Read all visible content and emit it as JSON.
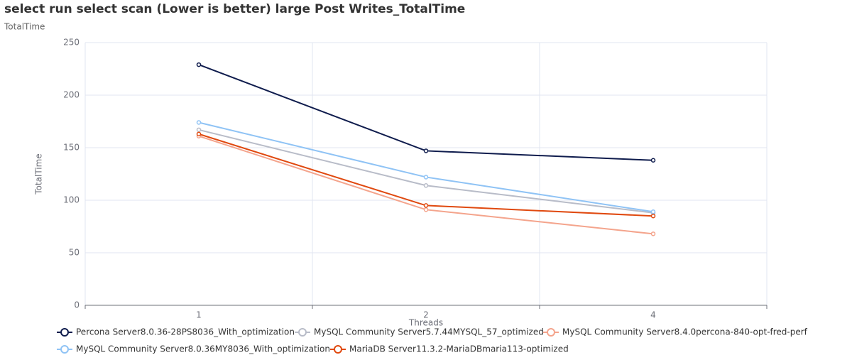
{
  "chart_data": {
    "type": "line",
    "title": "select run select scan (Lower is better)  large Post Writes_TotalTime",
    "subtitle": "TotalTime",
    "x_label": "Threads",
    "y_label": "TotalTime",
    "categories": [
      "1",
      "2",
      "4"
    ],
    "series": [
      {
        "name": "Percona Server8.0.36-28PS8036_With_optimization",
        "color": "#0f1c4d",
        "values": [
          229,
          147,
          138
        ]
      },
      {
        "name": "MySQL Community Server5.7.44MYSQL_57_optimized",
        "color": "#b8bcc8",
        "values": [
          167,
          114,
          88
        ]
      },
      {
        "name": "MySQL Community Server8.4.0percona-840-opt-fred-perf",
        "color": "#f4a48c",
        "values": [
          161,
          91,
          68
        ]
      },
      {
        "name": "MySQL Community Server8.0.36MY8036_With_optimization",
        "color": "#8fc3f5",
        "values": [
          174,
          122,
          89
        ]
      },
      {
        "name": "MariaDB Server11.3.2-MariaDBmaria113-optimized",
        "color": "#e0490f",
        "values": [
          163,
          95,
          85
        ]
      }
    ],
    "ylim": [
      0,
      250
    ],
    "yticks": [
      0,
      50,
      100,
      150,
      200,
      250
    ],
    "grid": true,
    "legend": "bottom"
  }
}
